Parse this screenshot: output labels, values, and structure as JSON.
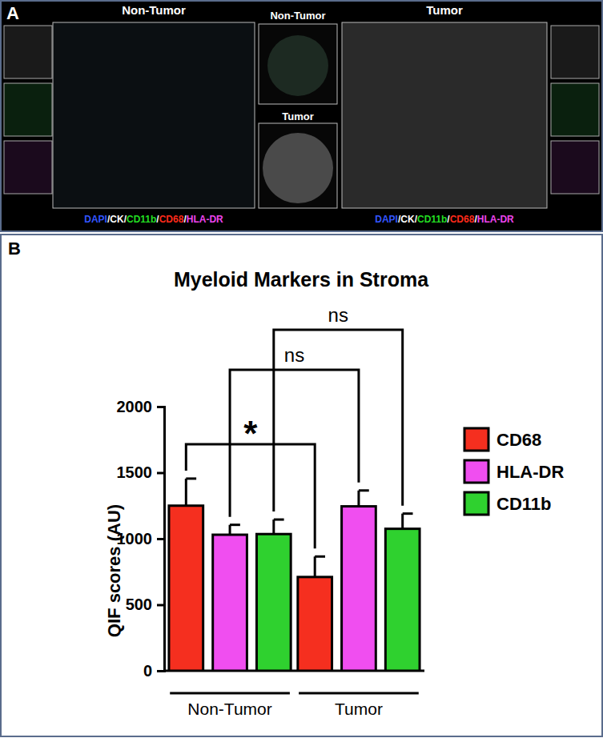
{
  "panel_a": {
    "letter": "A",
    "image_labels": [
      "Non-Tumor",
      "Non-Tumor",
      "Tumor",
      "Tumor"
    ],
    "stain_separator": "/",
    "stains": [
      {
        "text": "DAPI",
        "color": "#3355ff"
      },
      {
        "text": "CK",
        "color": "#ffffff"
      },
      {
        "text": "CD11b",
        "color": "#22dd22"
      },
      {
        "text": "CD68",
        "color": "#ff2a1a"
      },
      {
        "text": "HLA-DR",
        "color": "#ee44ee"
      }
    ]
  },
  "chart_data": {
    "type": "bar",
    "letter": "B",
    "title": "Myeloid Markers in Stroma",
    "y_label": "QIF scores (AU)",
    "categories": [
      "Non-Tumor",
      "Tumor"
    ],
    "series": [
      {
        "name": "CD68",
        "color": "#f52f1f",
        "values": [
          1250,
          710
        ],
        "errors": [
          205,
          155
        ]
      },
      {
        "name": "HLA-DR",
        "color": "#f04ef0",
        "values": [
          1030,
          1245
        ],
        "errors": [
          75,
          120
        ]
      },
      {
        "name": "CD11b",
        "color": "#2fd12f",
        "values": [
          1035,
          1075
        ],
        "errors": [
          110,
          115
        ]
      }
    ],
    "ylim": [
      0,
      2000
    ],
    "yticks": [
      0,
      500,
      1000,
      1500,
      2000
    ],
    "legend": "top-right",
    "annotations": [
      {
        "text": "*",
        "series": 0
      },
      {
        "text": "ns",
        "series": 1
      },
      {
        "text": "ns",
        "series": 2
      }
    ]
  }
}
